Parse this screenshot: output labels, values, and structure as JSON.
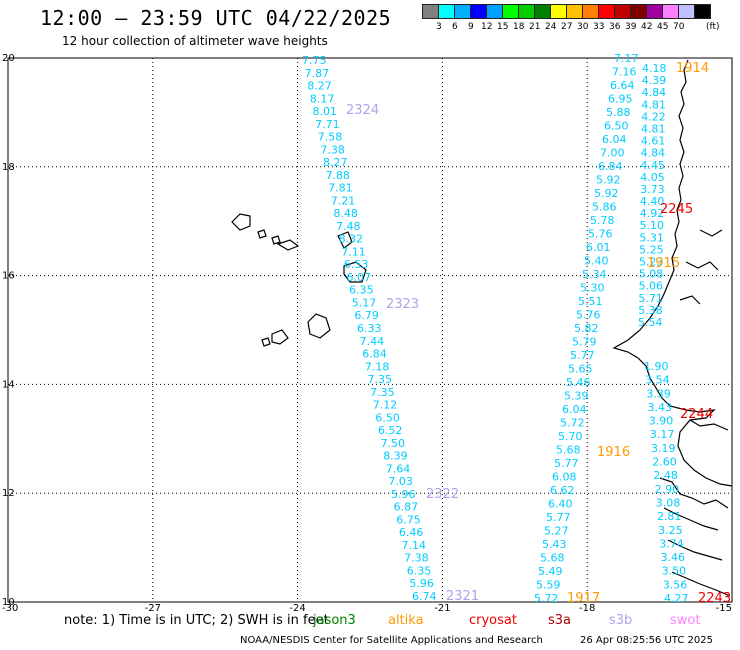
{
  "header": {
    "title": "12:00 – 23:59 UTC 04/22/2025",
    "subtitle": "12 hour collection of altimeter wave heights"
  },
  "legend": {
    "unit": "(ft)",
    "colors": [
      "#808080",
      "#00ffff",
      "#00b0ff",
      "#0000ff",
      "#00a0ff",
      "#00ff00",
      "#00cc00",
      "#008000",
      "#ffff00",
      "#ffc000",
      "#ff8000",
      "#ff0000",
      "#c00000",
      "#800000",
      "#a000a0",
      "#ff80ff",
      "#c0c0ff",
      "#000000"
    ],
    "labels": [
      "3",
      "6",
      "9",
      "12",
      "15",
      "18",
      "21",
      "24",
      "27",
      "30",
      "33",
      "36",
      "39",
      "42",
      "45",
      "70"
    ]
  },
  "map_data": {
    "lon_range": [
      -30,
      -15
    ],
    "lat_range": [
      10,
      20
    ],
    "lon_ticks": [
      "-30",
      "-27",
      "-24",
      "-21",
      "-18",
      "-15"
    ],
    "lat_ticks": [
      "20",
      "18",
      "16",
      "14",
      "12",
      "10"
    ],
    "track_west": {
      "color": "#00ccff",
      "values": [
        "7.75",
        "7.87",
        "8.27",
        "8.17",
        "8.01",
        "7.71",
        "7.58",
        "7.38",
        "8.27",
        "7.88",
        "7.81",
        "7.21",
        "8.48",
        "7.48",
        "8.32",
        "7.11",
        "6.53",
        "6.07",
        "6.35",
        "5.17",
        "6.79",
        "6.33",
        "7.44",
        "6.84",
        "7.18",
        "7.35",
        "7.35",
        "7.12",
        "6.50",
        "6.52",
        "7.50",
        "8.39",
        "7.64",
        "7.03",
        "5.96",
        "6.87",
        "6.75",
        "6.46",
        "7.14",
        "7.38",
        "6.35",
        "5.96",
        "6.74"
      ]
    },
    "track_east": {
      "color": "#00ccff",
      "values": [
        "7.17",
        "7.16",
        "6.64",
        "6.95",
        "5.88",
        "6.50",
        "6.04",
        "7.00",
        "6.84",
        "5.92",
        "5.92",
        "5.86",
        "5.78",
        "5.76",
        "6.01",
        "5.40",
        "5.34",
        "5.30",
        "5.51",
        "5.76",
        "5.82",
        "5.79",
        "5.77",
        "5.65",
        "5.46",
        "5.39",
        "6.04",
        "5.72",
        "5.70",
        "5.68",
        "5.77",
        "6.08",
        "6.62",
        "6.40",
        "5.77",
        "5.27",
        "5.43",
        "5.68",
        "5.49",
        "5.59",
        "5.72"
      ]
    },
    "track_coast": {
      "color": "#00ccff",
      "values": [
        "4.18",
        "4.39",
        "4.84",
        "4.81",
        "4.22",
        "4.81",
        "4.61",
        "4.84",
        "4.45",
        "4.05",
        "3.73",
        "4.40",
        "4.92",
        "5.10",
        "5.31",
        "5.25",
        "5.23",
        "5.08",
        "5.06",
        "5.71",
        "5.38",
        "5.54"
      ]
    },
    "track_south": {
      "color": "#00ccff",
      "values": [
        "1.90",
        "3.54",
        "3.39",
        "3.43",
        "3.90",
        "3.17",
        "3.19",
        "2.60",
        "2.48",
        "2.90",
        "3.08",
        "2.81",
        "3.25",
        "3.74",
        "3.46",
        "3.50",
        "3.56",
        "4.27"
      ]
    },
    "pass_labels": [
      {
        "text": "1914",
        "color": "#ff9900"
      },
      {
        "text": "2324",
        "color": "#b0a0ee"
      },
      {
        "text": "2245",
        "color": "#ee0000"
      },
      {
        "text": "1915",
        "color": "#ff9900"
      },
      {
        "text": "2323",
        "color": "#b0a0ee"
      },
      {
        "text": "2244",
        "color": "#ee0000"
      },
      {
        "text": "1916",
        "color": "#ff9900"
      },
      {
        "text": "2322",
        "color": "#b0a0ee"
      },
      {
        "text": "2321",
        "color": "#b0a0ee"
      },
      {
        "text": "1917",
        "color": "#ff9900"
      },
      {
        "text": "2243",
        "color": "#ee0000"
      }
    ]
  },
  "footer": {
    "note": "note:  1) Time is in UTC; 2) SWH is in feet",
    "satellites": [
      {
        "name": "jason3",
        "color": "#008000"
      },
      {
        "name": "altika",
        "color": "#ff9900"
      },
      {
        "name": "cryosat",
        "color": "#ee0000"
      },
      {
        "name": "s3a",
        "color": "#aa0000"
      },
      {
        "name": "s3b",
        "color": "#b0a0ee"
      },
      {
        "name": "swot",
        "color": "#ff80ff"
      }
    ],
    "credit": "NOAA/NESDIS Center for Satellite Applications and Research",
    "timestamp": "26 Apr 08:25:56 UTC 2025"
  }
}
